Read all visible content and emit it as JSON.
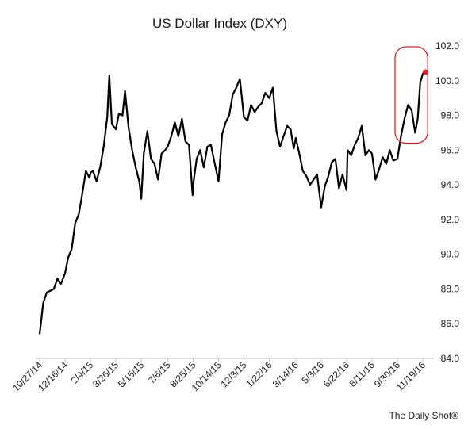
{
  "chart_data": {
    "type": "line",
    "title": "US Dollar Index (DXY)",
    "xlabel": "",
    "ylabel": "",
    "ylim": [
      84.0,
      102.0
    ],
    "yticks": [
      "84.0",
      "86.0",
      "88.0",
      "90.0",
      "92.0",
      "94.0",
      "96.0",
      "98.0",
      "100.0",
      "102.0"
    ],
    "x_tick_labels": [
      "10/27/14",
      "12/16/14",
      "2/4/15",
      "3/26/15",
      "5/15/15",
      "7/6/15",
      "8/25/15",
      "10/14/15",
      "12/3/15",
      "1/22/16",
      "3/14/16",
      "5/3/16",
      "6/22/16",
      "8/11/16",
      "9/30/16",
      "11/19/16"
    ],
    "grid": false,
    "y_axis_side": "right",
    "series": [
      {
        "color": "#000000",
        "points": [
          [
            "10/27/14",
            85.4
          ],
          [
            "11/3/14",
            87.2
          ],
          [
            "11/10/14",
            87.8
          ],
          [
            "11/17/14",
            87.9
          ],
          [
            "11/24/14",
            88.0
          ],
          [
            "12/1/14",
            88.6
          ],
          [
            "12/8/14",
            88.3
          ],
          [
            "12/16/14",
            88.9
          ],
          [
            "12/22/14",
            89.8
          ],
          [
            "12/29/14",
            90.3
          ],
          [
            "1/5/15",
            91.8
          ],
          [
            "1/12/15",
            92.3
          ],
          [
            "1/19/15",
            93.5
          ],
          [
            "1/26/15",
            94.8
          ],
          [
            "2/2/15",
            94.4
          ],
          [
            "2/4/15",
            94.7
          ],
          [
            "2/9/15",
            94.8
          ],
          [
            "2/16/15",
            94.2
          ],
          [
            "2/23/15",
            95.0
          ],
          [
            "3/2/15",
            96.2
          ],
          [
            "3/9/15",
            97.9
          ],
          [
            "3/13/15",
            100.3
          ],
          [
            "3/18/15",
            97.5
          ],
          [
            "3/26/15",
            97.2
          ],
          [
            "4/1/15",
            98.1
          ],
          [
            "4/8/15",
            98.0
          ],
          [
            "4/13/15",
            99.4
          ],
          [
            "4/20/15",
            97.3
          ],
          [
            "4/27/15",
            96.0
          ],
          [
            "5/4/15",
            95.0
          ],
          [
            "5/11/15",
            94.2
          ],
          [
            "5/15/15",
            93.2
          ],
          [
            "5/20/15",
            95.8
          ],
          [
            "5/27/15",
            97.1
          ],
          [
            "6/3/15",
            95.5
          ],
          [
            "6/10/15",
            95.2
          ],
          [
            "6/17/15",
            94.3
          ],
          [
            "6/24/15",
            95.8
          ],
          [
            "7/1/15",
            96.0
          ],
          [
            "7/6/15",
            96.2
          ],
          [
            "7/13/15",
            96.8
          ],
          [
            "7/20/15",
            97.6
          ],
          [
            "7/27/15",
            96.8
          ],
          [
            "8/3/15",
            97.8
          ],
          [
            "8/10/15",
            96.5
          ],
          [
            "8/17/15",
            96.3
          ],
          [
            "8/24/15",
            93.4
          ],
          [
            "8/25/15",
            94.0
          ],
          [
            "9/1/15",
            95.5
          ],
          [
            "9/8/15",
            96.0
          ],
          [
            "9/15/15",
            95.0
          ],
          [
            "9/22/15",
            96.2
          ],
          [
            "9/29/15",
            96.3
          ],
          [
            "10/6/15",
            95.3
          ],
          [
            "10/14/15",
            94.2
          ],
          [
            "10/21/15",
            96.9
          ],
          [
            "10/28/15",
            97.6
          ],
          [
            "11/4/15",
            98.0
          ],
          [
            "11/11/15",
            99.2
          ],
          [
            "11/18/15",
            99.6
          ],
          [
            "11/25/15",
            100.1
          ],
          [
            "12/3/15",
            97.9
          ],
          [
            "12/10/15",
            97.7
          ],
          [
            "12/17/15",
            98.6
          ],
          [
            "12/24/15",
            98.2
          ],
          [
            "12/31/15",
            98.5
          ],
          [
            "1/7/16",
            98.7
          ],
          [
            "1/14/16",
            99.3
          ],
          [
            "1/22/16",
            99.0
          ],
          [
            "1/29/16",
            99.6
          ],
          [
            "2/5/16",
            97.1
          ],
          [
            "2/12/16",
            96.2
          ],
          [
            "2/19/16",
            96.8
          ],
          [
            "2/26/16",
            97.4
          ],
          [
            "3/4/16",
            97.2
          ],
          [
            "3/10/16",
            96.1
          ],
          [
            "3/14/16",
            96.7
          ],
          [
            "3/21/16",
            95.8
          ],
          [
            "3/28/16",
            94.8
          ],
          [
            "4/4/16",
            94.5
          ],
          [
            "4/11/16",
            94.0
          ],
          [
            "4/18/16",
            94.3
          ],
          [
            "4/25/16",
            94.6
          ],
          [
            "5/3/16",
            92.7
          ],
          [
            "5/10/16",
            93.9
          ],
          [
            "5/17/16",
            94.5
          ],
          [
            "5/24/16",
            95.3
          ],
          [
            "5/31/16",
            95.5
          ],
          [
            "6/7/16",
            93.8
          ],
          [
            "6/14/16",
            94.6
          ],
          [
            "6/22/16",
            93.7
          ],
          [
            "6/24/16",
            96.0
          ],
          [
            "7/1/16",
            95.7
          ],
          [
            "7/8/16",
            96.3
          ],
          [
            "7/15/16",
            96.7
          ],
          [
            "7/22/16",
            97.4
          ],
          [
            "7/29/16",
            95.7
          ],
          [
            "8/5/16",
            96.0
          ],
          [
            "8/11/16",
            95.8
          ],
          [
            "8/18/16",
            94.3
          ],
          [
            "8/25/16",
            94.9
          ],
          [
            "9/1/16",
            95.6
          ],
          [
            "9/8/16",
            95.2
          ],
          [
            "9/15/16",
            96.0
          ],
          [
            "9/22/16",
            95.4
          ],
          [
            "9/30/16",
            95.5
          ],
          [
            "10/7/16",
            96.8
          ],
          [
            "10/14/16",
            97.8
          ],
          [
            "10/21/16",
            98.6
          ],
          [
            "10/28/16",
            98.3
          ],
          [
            "11/4/16",
            97.0
          ],
          [
            "11/9/16",
            97.8
          ],
          [
            "11/14/16",
            99.9
          ],
          [
            "11/19/16",
            100.4
          ],
          [
            "11/24/16",
            100.5
          ]
        ]
      }
    ],
    "highlight": {
      "x_range": [
        "9/30/16",
        "11/24/16"
      ],
      "y_range": [
        96.4,
        102.0
      ],
      "color": "#e02020",
      "end_point": [
        "11/24/16",
        100.5
      ]
    }
  },
  "credit": "The Daily Shot®"
}
